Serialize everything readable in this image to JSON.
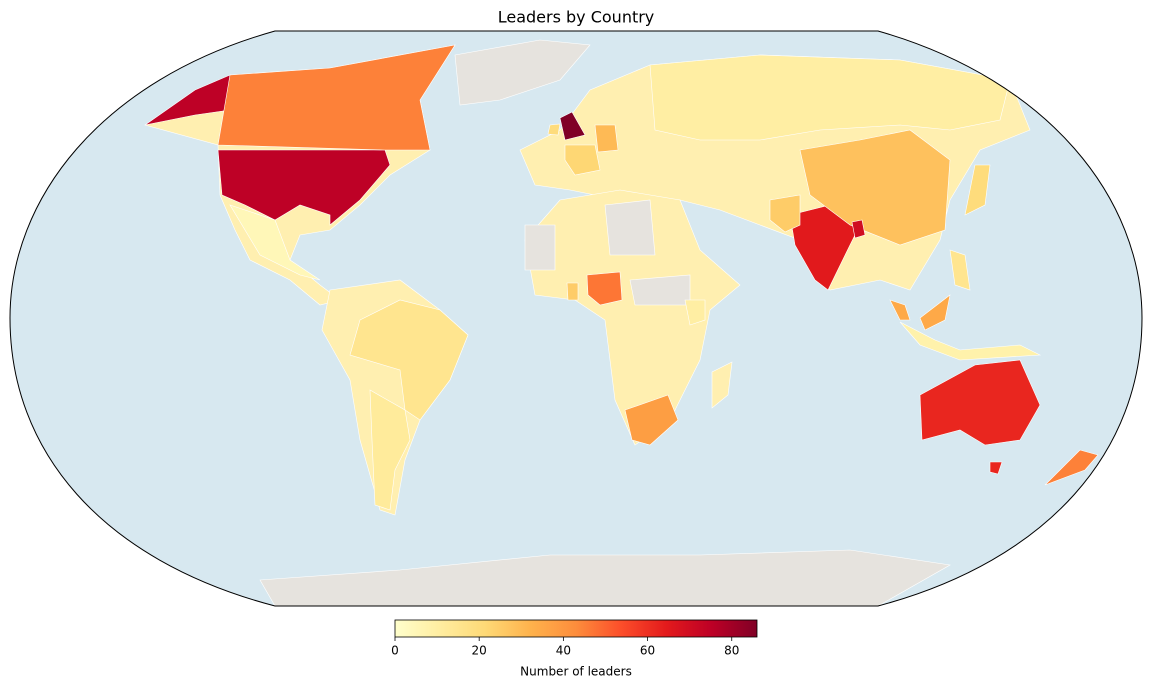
{
  "chart_data": {
    "type": "choropleth",
    "title": "Leaders by Country",
    "colorbar_label": "Number of leaders",
    "colormap": "YlOrRd",
    "clim": [
      0,
      86
    ],
    "cticks": [
      0,
      20,
      40,
      60,
      80
    ],
    "missing_color": "#e6e3de",
    "ocean_color": "#d7e8f0",
    "values": [
      86,
      75,
      65,
      62,
      45,
      47,
      38,
      28,
      30,
      22,
      45,
      25,
      15,
      10,
      12,
      5,
      20,
      70,
      35,
      20,
      25,
      10,
      8,
      15
    ]
  }
}
